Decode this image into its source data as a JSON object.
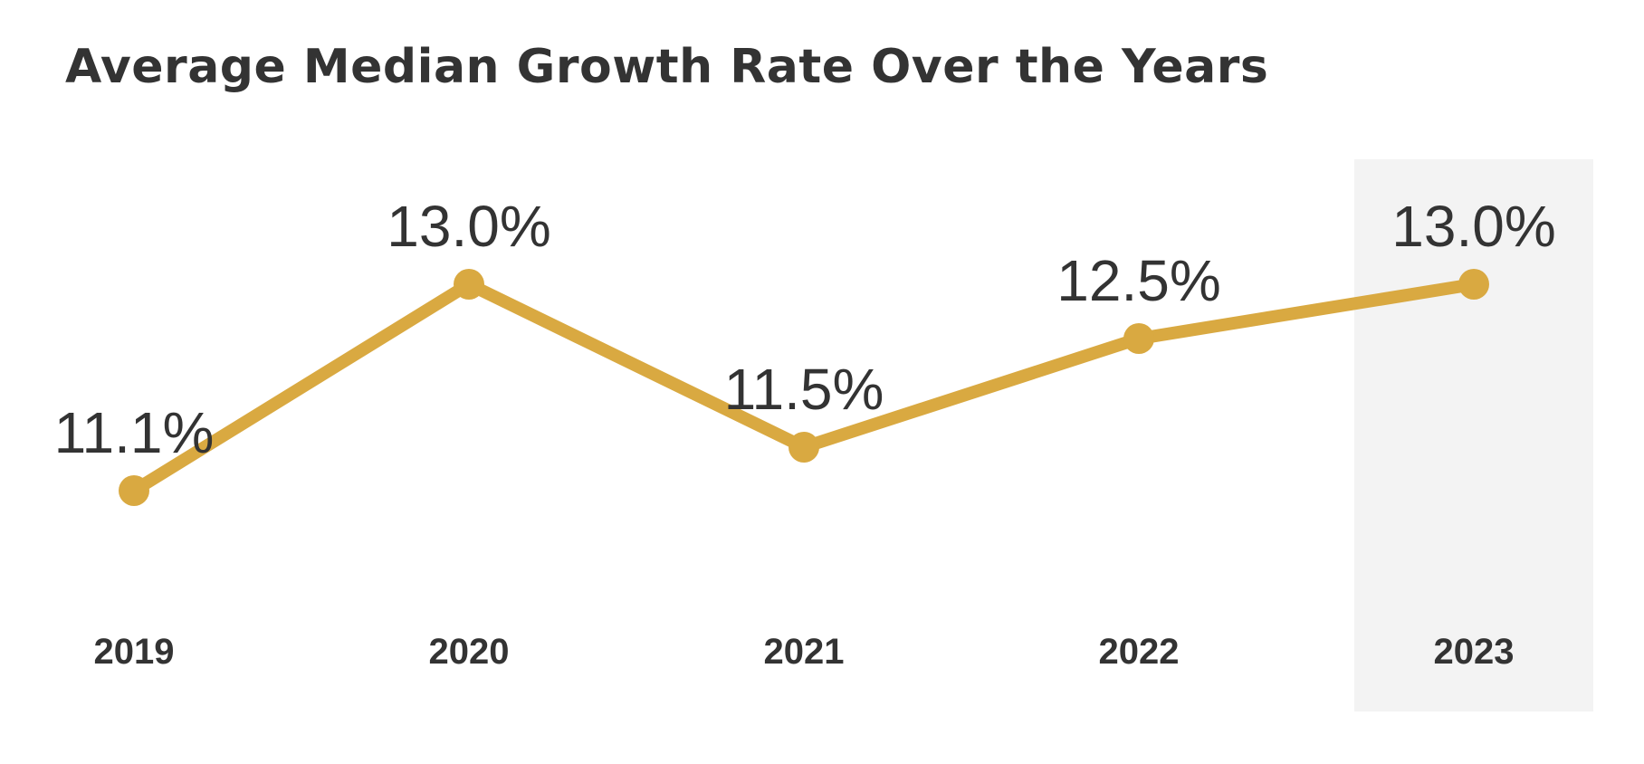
{
  "chart_data": {
    "type": "line",
    "title": "Average Median Growth Rate Over the Years",
    "categories": [
      "2019",
      "2020",
      "2021",
      "2022",
      "2023"
    ],
    "series": [
      {
        "values": [
          11.1,
          13.0,
          11.5,
          12.5,
          13.0
        ]
      }
    ],
    "data_labels": [
      "11.1%",
      "13.0%",
      "11.5%",
      "12.5%",
      "13.0%"
    ],
    "highlighted_category": "2023",
    "xlabel": "",
    "ylabel": "",
    "grid": false,
    "legend": "none"
  },
  "colors": {
    "line": "#D9A941",
    "marker": "#D9A941",
    "text": "#333333",
    "highlight_band": "#F3F3F3",
    "background": "#FFFFFF"
  }
}
